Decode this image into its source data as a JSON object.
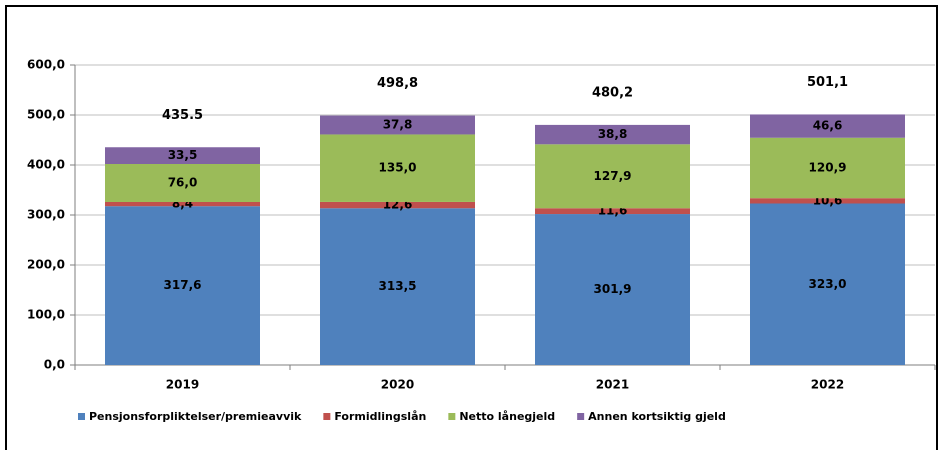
{
  "chart_data": {
    "type": "stacked_bar",
    "categories": [
      "2019",
      "2020",
      "2021",
      "2022"
    ],
    "series": [
      {
        "name": "Pensjonsforpliktelser/premieavvik",
        "color": "#4f81bd",
        "values": [
          317.6,
          313.5,
          301.9,
          323.0
        ],
        "value_labels": [
          "317,6",
          "313,5",
          "301,9",
          "323,0"
        ]
      },
      {
        "name": "Formidlingslån",
        "color": "#c0504d",
        "values": [
          8.4,
          12.6,
          11.6,
          10.6
        ],
        "value_labels": [
          "8,4",
          "12,6",
          "11,6",
          "10,6"
        ]
      },
      {
        "name": "Netto lånegjeld",
        "color": "#9bbb59",
        "values": [
          76.0,
          135.0,
          127.9,
          120.9
        ],
        "value_labels": [
          "76,0",
          "135,0",
          "127,9",
          "120,9"
        ]
      },
      {
        "name": "Annen kortsiktig gjeld",
        "color": "#8064a2",
        "values": [
          33.5,
          37.8,
          38.8,
          46.6
        ],
        "value_labels": [
          "33,5",
          "37,8",
          "38,8",
          "46,6"
        ]
      }
    ],
    "totals": [
      435.5,
      498.8,
      480.2,
      501.1
    ],
    "total_labels": [
      "435.5",
      "498,8",
      "480,2",
      "501,1"
    ],
    "ylim": [
      0,
      600
    ],
    "yticks": [
      {
        "value": 0,
        "label": "0,0"
      },
      {
        "value": 100,
        "label": "100,0"
      },
      {
        "value": 200,
        "label": "200,0"
      },
      {
        "value": 300,
        "label": "300,0"
      },
      {
        "value": 400,
        "label": "400,0"
      },
      {
        "value": 500,
        "label": "500,0"
      },
      {
        "value": 600,
        "label": "600,0"
      }
    ],
    "grid": true,
    "legend": "bottom"
  }
}
